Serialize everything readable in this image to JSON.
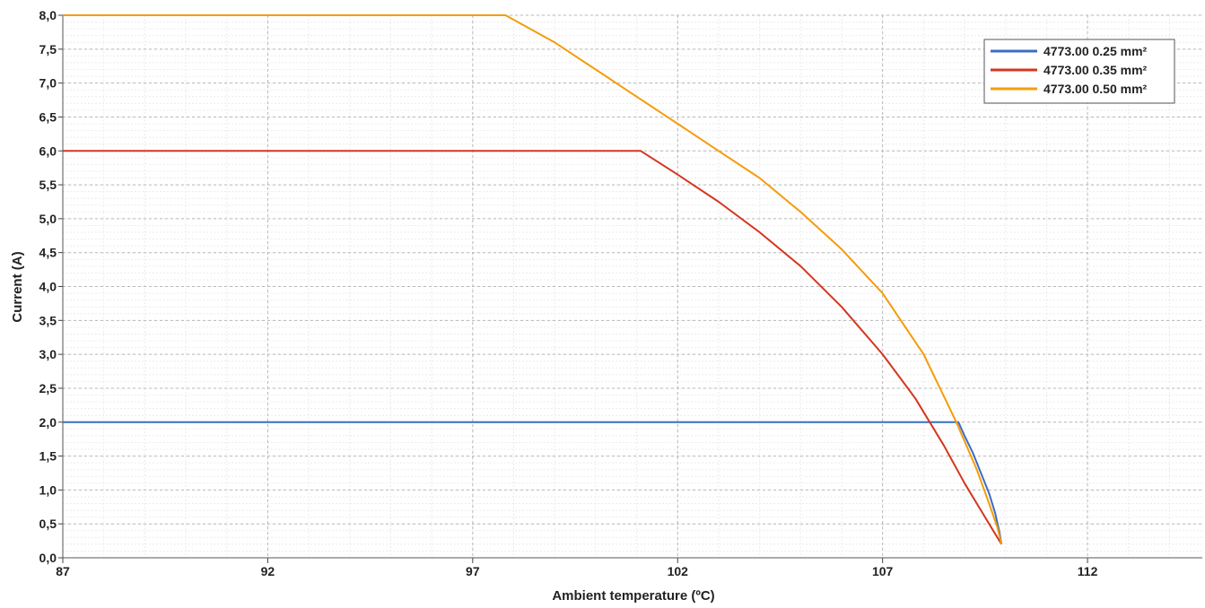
{
  "chart_data": {
    "type": "line",
    "xlabel": "Ambient temperature (ºC)",
    "ylabel": "Current (A)",
    "xlim": [
      87,
      114.8
    ],
    "ylim": [
      0,
      8
    ],
    "x_ticks": [
      "87",
      "92",
      "97",
      "102",
      "107",
      "112"
    ],
    "y_ticks": [
      "0,0",
      "0,5",
      "1,0",
      "1,5",
      "2,0",
      "2,5",
      "3,0",
      "3,5",
      "4,0",
      "4,5",
      "5,0",
      "5,5",
      "6,0",
      "6,5",
      "7,0",
      "7,5",
      "8,0"
    ],
    "grid": true,
    "legend_position": "top-right",
    "series": [
      {
        "name": "4773.00 0.25 mm²",
        "color": "#3a6dc4",
        "x": [
          87,
          108.85,
          109.0,
          109.2,
          109.4,
          109.6,
          109.75,
          109.85,
          109.9
        ],
        "y": [
          2.0,
          2.0,
          1.8,
          1.55,
          1.25,
          0.95,
          0.65,
          0.38,
          0.2
        ]
      },
      {
        "name": "4773.00 0.35 mm²",
        "color": "#d4361e",
        "x": [
          87,
          101.1,
          102.0,
          103.0,
          104.0,
          105.0,
          106.0,
          107.0,
          107.8,
          108.5,
          109.0,
          109.4,
          109.7,
          109.9
        ],
        "y": [
          6.0,
          6.0,
          5.65,
          5.25,
          4.8,
          4.3,
          3.7,
          3.0,
          2.35,
          1.65,
          1.1,
          0.7,
          0.4,
          0.2
        ]
      },
      {
        "name": "4773.00 0.50 mm²",
        "color": "#f59c0a",
        "x": [
          87,
          97.8,
          99.0,
          100.0,
          101.0,
          102.0,
          103.0,
          104.0,
          105.0,
          106.0,
          107.0,
          108.0,
          108.8,
          109.3,
          109.6,
          109.8,
          109.9
        ],
        "y": [
          8.0,
          8.0,
          7.6,
          7.2,
          6.8,
          6.4,
          6.0,
          5.6,
          5.1,
          4.55,
          3.9,
          3.0,
          2.0,
          1.3,
          0.8,
          0.45,
          0.2
        ]
      }
    ]
  }
}
